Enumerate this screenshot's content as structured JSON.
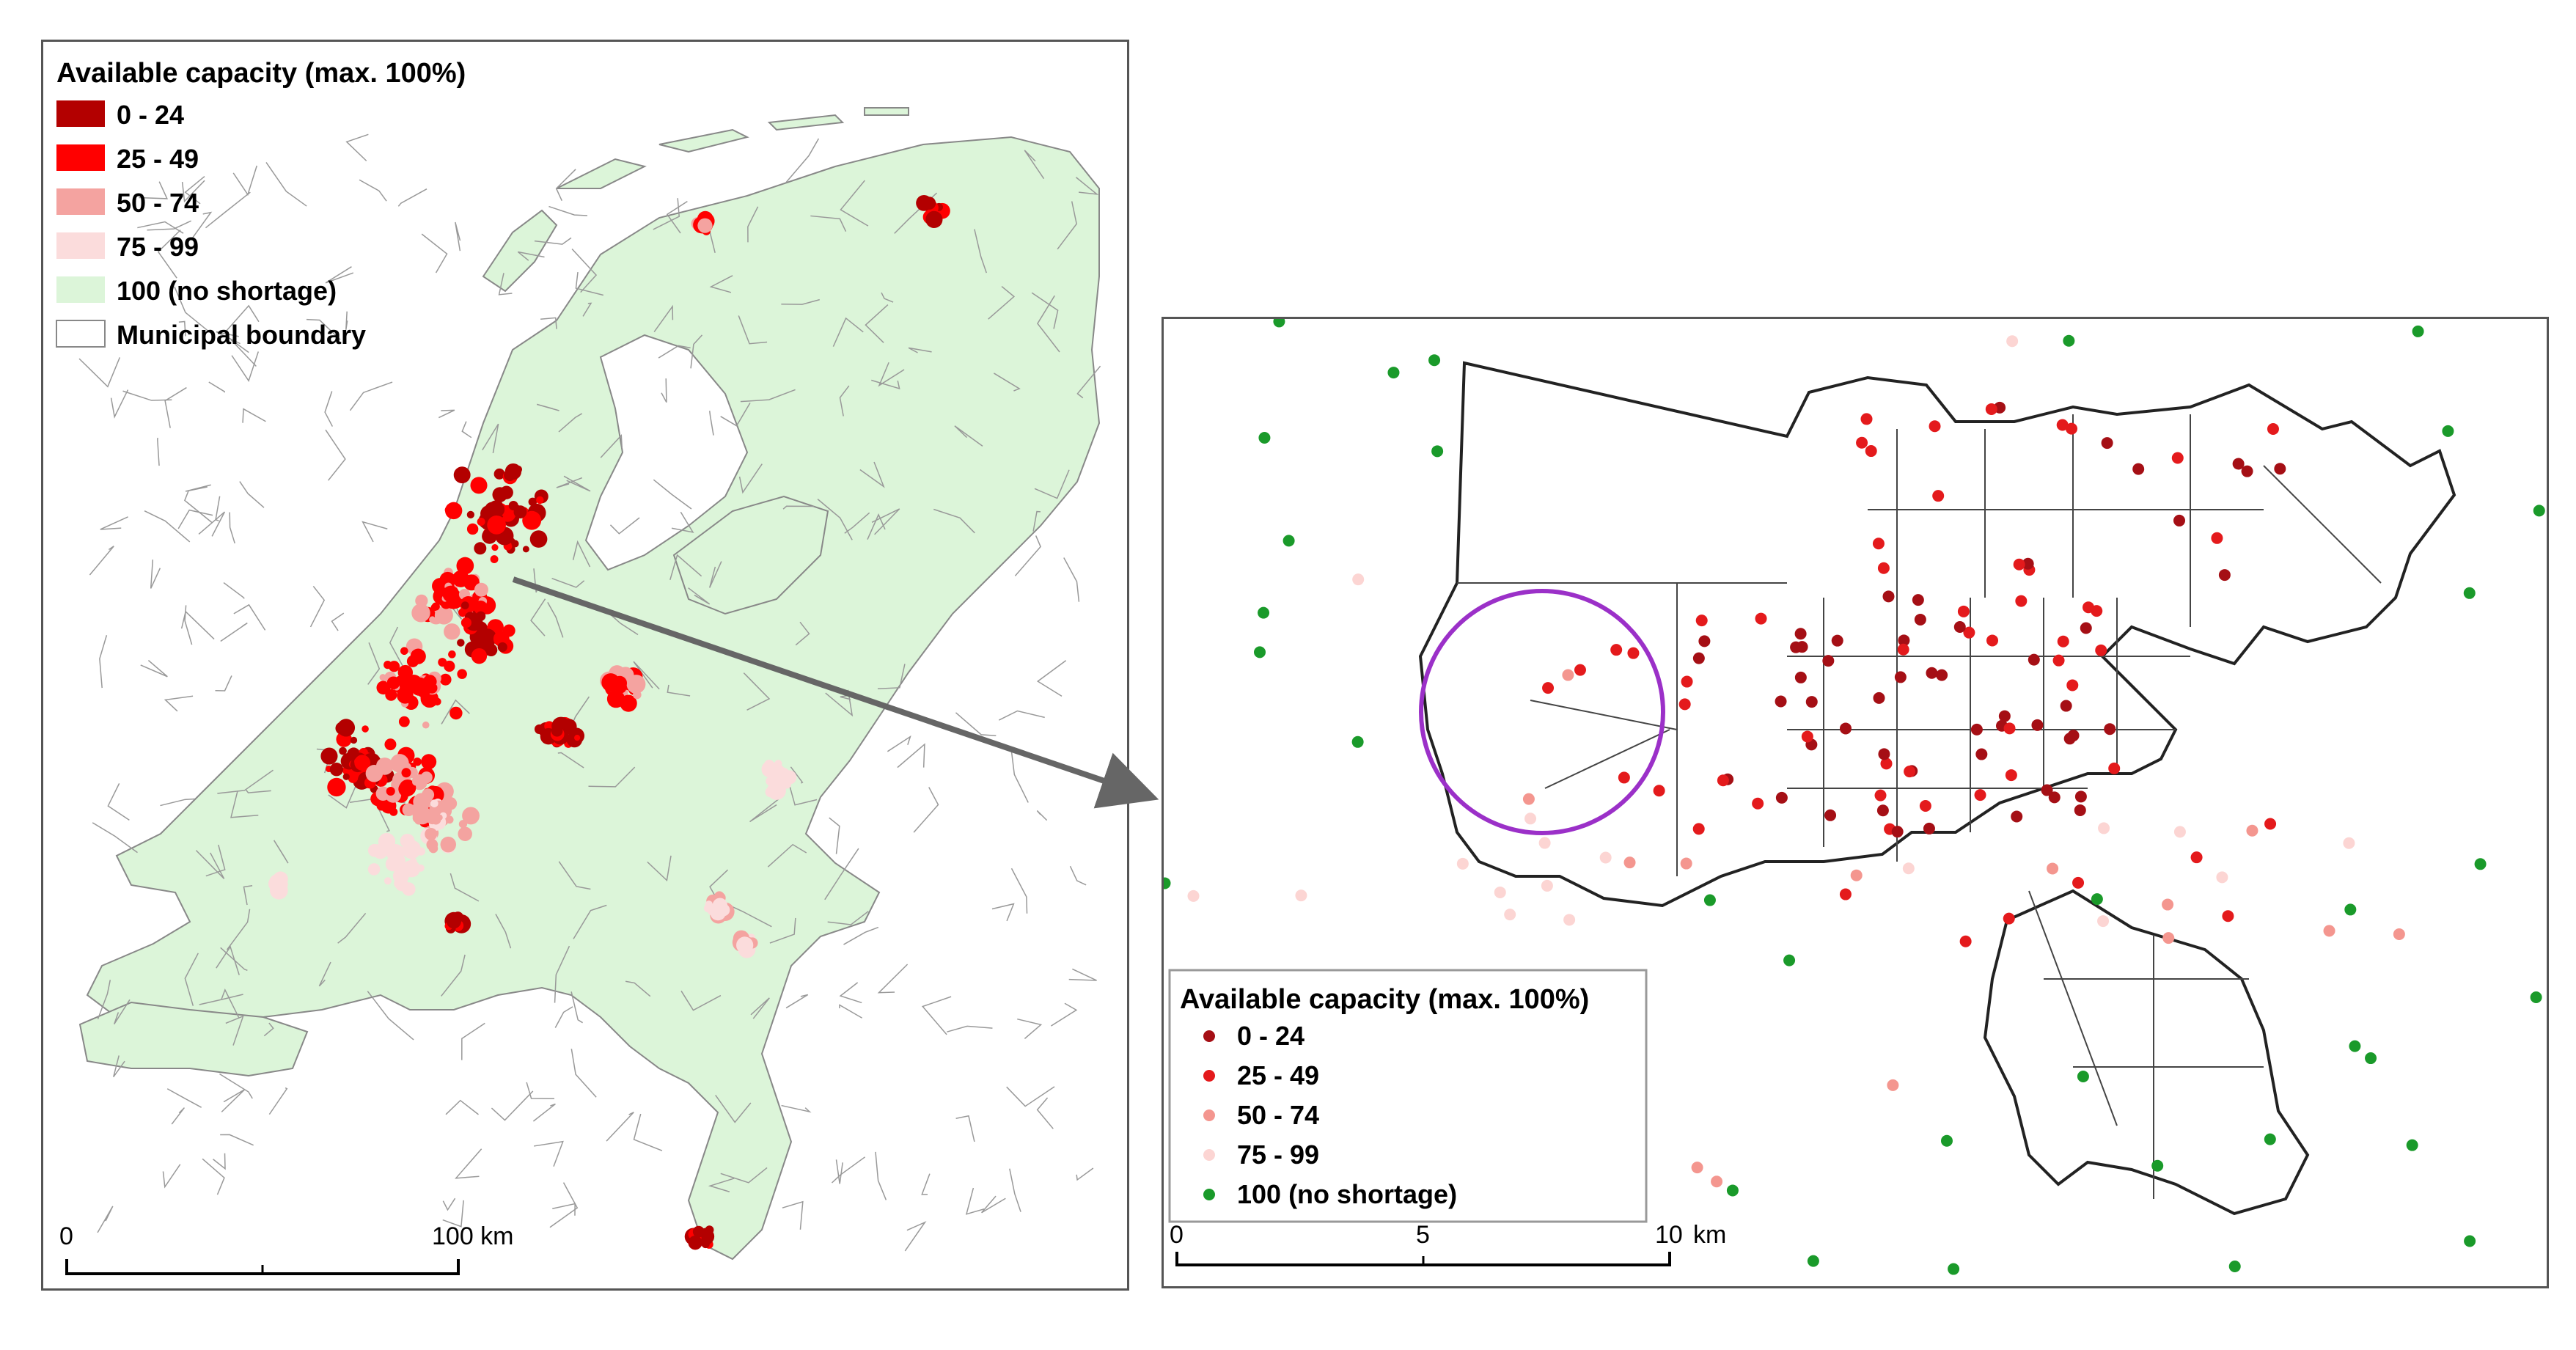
{
  "left_map": {
    "legend": {
      "title": "Available capacity (max. 100%)",
      "items": [
        {
          "label": "0 - 24",
          "color": "#b30000"
        },
        {
          "label": "25 - 49",
          "color": "#ff0000"
        },
        {
          "label": "50 - 74",
          "color": "#f4a3a0"
        },
        {
          "label": "75 - 99",
          "color": "#fbdcdc"
        },
        {
          "label": "100 (no shortage)",
          "color": "#dcf5d9"
        },
        {
          "label": "Municipal boundary",
          "color": "#ffffff"
        }
      ]
    },
    "scale_bar": {
      "start_label": "0",
      "end_label": "100 km"
    }
  },
  "right_map": {
    "legend": {
      "title": "Available capacity (max. 100%)",
      "items": [
        {
          "label": "0 - 24",
          "color": "#a50f15"
        },
        {
          "label": "25 - 49",
          "color": "#e41a1c"
        },
        {
          "label": "50 - 74",
          "color": "#f4968f"
        },
        {
          "label": "75 - 99",
          "color": "#fcd5d3"
        },
        {
          "label": "100 (no shortage)",
          "color": "#1a9a2a"
        }
      ]
    },
    "scale_bar": {
      "labels": [
        "0",
        "5",
        "10"
      ],
      "unit": "km"
    },
    "highlight_circle_color": "#9b30c8"
  },
  "arrow_color": "#666666"
}
